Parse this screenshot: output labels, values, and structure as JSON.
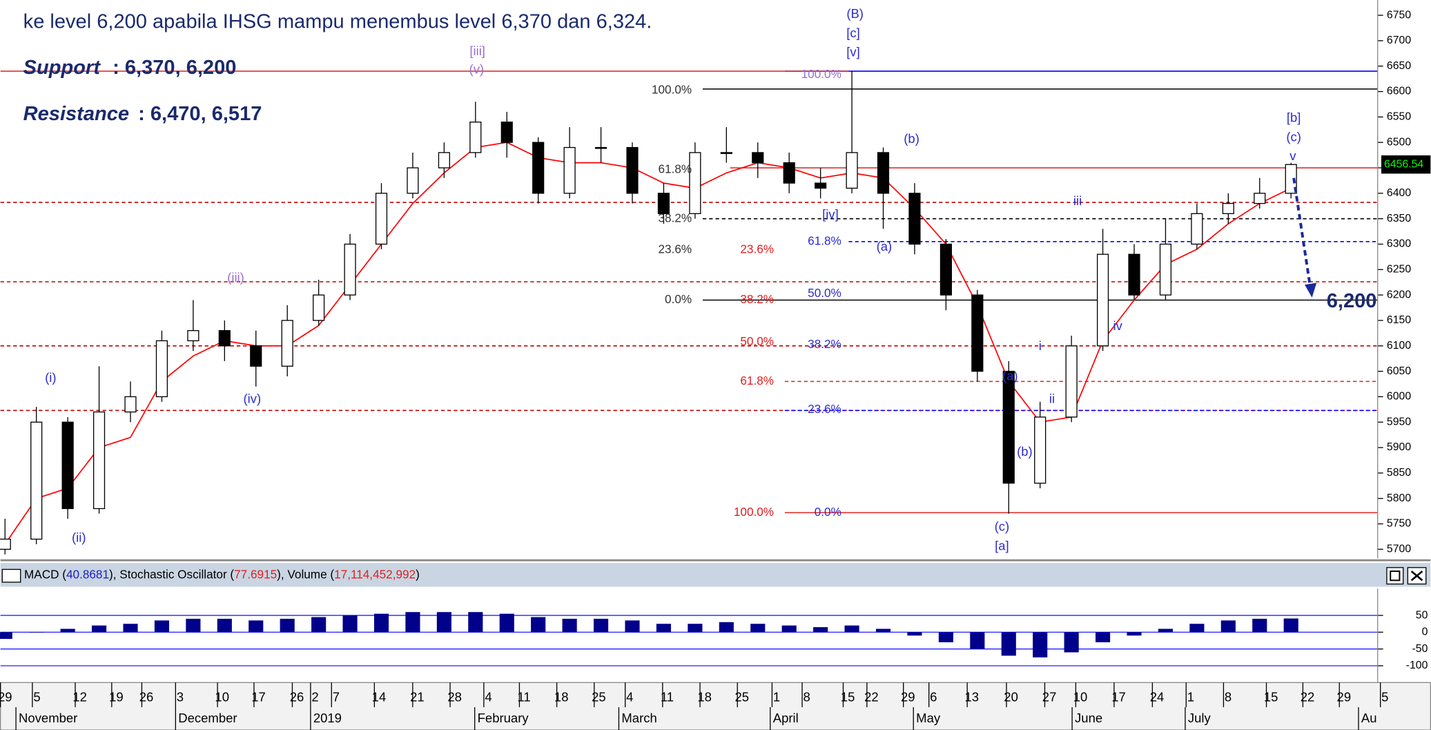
{
  "notes": {
    "text": "ke level 6,200 apabila IHSG mampu menembus level 6,370 dan 6,324.",
    "support_label": "Support",
    "support_text": ": 6,370, 6,200",
    "resistance_label": "Resistance",
    "resistance_text": ": 6,470, 6,517"
  },
  "chart_data": [
    {
      "type": "candlestick",
      "open": [
        5700,
        5720,
        5950,
        5780,
        5970,
        6000,
        6110,
        6130,
        6100,
        6060,
        6150,
        6200,
        6300,
        6400,
        6450,
        6480,
        6540,
        6500,
        6400,
        6490,
        6490,
        6400,
        6360,
        6480,
        6480,
        6460,
        6420,
        6410,
        6480,
        6400,
        6300,
        6200,
        6050,
        5830,
        5960,
        6100,
        6280,
        6200,
        6300,
        6360,
        6380,
        6400
      ],
      "high": [
        5760,
        5980,
        5960,
        6060,
        6030,
        6130,
        6190,
        6150,
        6130,
        6180,
        6230,
        6320,
        6420,
        6480,
        6500,
        6580,
        6560,
        6510,
        6530,
        6530,
        6500,
        6420,
        6500,
        6530,
        6500,
        6480,
        6450,
        6640,
        6490,
        6420,
        6310,
        6210,
        6070,
        5990,
        6120,
        6330,
        6300,
        6350,
        6380,
        6400,
        6430,
        6460
      ],
      "low": [
        5690,
        5710,
        5760,
        5770,
        5950,
        5990,
        6090,
        6070,
        6020,
        6040,
        6140,
        6190,
        6290,
        6390,
        6430,
        6470,
        6470,
        6380,
        6390,
        6460,
        6380,
        6340,
        6350,
        6460,
        6430,
        6400,
        6390,
        6400,
        6330,
        6280,
        6170,
        6030,
        5770,
        5820,
        5950,
        6090,
        6190,
        6190,
        6290,
        6340,
        6370,
        6390
      ],
      "close": [
        5720,
        5950,
        5780,
        5970,
        6000,
        6110,
        6130,
        6100,
        6060,
        6150,
        6200,
        6300,
        6400,
        6450,
        6480,
        6540,
        6500,
        6400,
        6490,
        6490,
        6400,
        6360,
        6480,
        6480,
        6460,
        6420,
        6410,
        6480,
        6400,
        6300,
        6200,
        6050,
        5830,
        5960,
        6100,
        6280,
        6200,
        6300,
        6360,
        6380,
        6400,
        6456.54
      ],
      "ma": {
        "color": "#ff0000",
        "values": [
          5710,
          5800,
          5820,
          5900,
          5920,
          6030,
          6080,
          6110,
          6100,
          6100,
          6140,
          6220,
          6300,
          6380,
          6440,
          6490,
          6500,
          6470,
          6460,
          6460,
          6450,
          6420,
          6410,
          6440,
          6460,
          6450,
          6430,
          6440,
          6430,
          6370,
          6300,
          6180,
          6030,
          5950,
          5960,
          6110,
          6190,
          6260,
          6290,
          6340,
          6380,
          6410
        ]
      },
      "up_color": "#ffffff",
      "down_color": "#000000",
      "ylim": [
        5682,
        6780
      ],
      "yticks": [
        5700,
        5750,
        5800,
        5850,
        5900,
        5950,
        6000,
        6050,
        6100,
        6150,
        6200,
        6250,
        6300,
        6350,
        6400,
        6450,
        6500,
        6550,
        6600,
        6650,
        6700,
        6750
      ],
      "reference_lines": [
        {
          "value": 6640,
          "color": "#0000ff",
          "dashed": false
        },
        {
          "value": 6640,
          "color": "#e03030",
          "dashed": false
        },
        {
          "value": 6605,
          "color": "#000000",
          "dashed": false
        },
        {
          "value": 6450,
          "color": "#e03030",
          "dashed": false
        },
        {
          "value": 6382,
          "color": "#c00000",
          "dashed": true
        },
        {
          "value": 6350,
          "color": "#000000",
          "dashed": true
        },
        {
          "value": 6305,
          "color": "#0000ff",
          "dashed": true
        },
        {
          "value": 6226,
          "color": "#c00000",
          "dashed": true
        },
        {
          "value": 6190,
          "color": "#000000",
          "dashed": false
        },
        {
          "value": 6100,
          "color": "#c00000",
          "dashed": true
        },
        {
          "value": 6030,
          "color": "#e03030",
          "dashed": true
        },
        {
          "value": 5973,
          "color": "#c00000",
          "dashed": true
        },
        {
          "value": 5973,
          "color": "#0000ff",
          "dashed": true
        },
        {
          "value": 5772,
          "color": "#e03030",
          "dashed": false
        }
      ],
      "wave_labels": [
        "(i)",
        "(ii)",
        "(iii)",
        "(iv)",
        "[iii]",
        "(v)",
        "(B)",
        "[c]",
        "[v]",
        "[iv]",
        "(b)",
        "(a)",
        "iii",
        "i",
        "(a)",
        "ii",
        "(b)",
        "(c)",
        "[a]",
        "iv",
        "[b]",
        "(c)",
        "v"
      ],
      "fib_labels": [
        "100.0%",
        "61.8%",
        "38.2%",
        "23.6%",
        "0.0%",
        "23.6%",
        "38.2%",
        "50.0%",
        "61.8%",
        "100.0%",
        "100.0%",
        "61.8%",
        "50.0%",
        "38.2%",
        "23.6%",
        "0.0%"
      ],
      "target_label": "6,200",
      "date_labels": [
        "29",
        "5",
        "12",
        "19",
        "26",
        "3",
        "10",
        "17",
        "26",
        "2",
        "7",
        "14",
        "21",
        "28",
        "4",
        "11",
        "18",
        "25",
        "4",
        "11",
        "18",
        "25",
        "1",
        "8",
        "15",
        "22",
        "29",
        "6",
        "13",
        "20",
        "27",
        "10",
        "17",
        "24",
        "1",
        "8",
        "15",
        "22",
        "29",
        "5"
      ],
      "month_labels": [
        "November",
        "December",
        "2019",
        "February",
        "March",
        "April",
        "May",
        "June",
        "July",
        "Au"
      ]
    },
    {
      "type": "bar",
      "legend": [
        "MACD (",
        "40.8681",
        "), Stochastic Oscillator (",
        "77.6915",
        "), Volume (",
        "17,114,452,992",
        ")"
      ],
      "color": "#00008b",
      "values": [
        -20,
        0,
        10,
        20,
        25,
        35,
        40,
        40,
        35,
        40,
        45,
        50,
        55,
        60,
        60,
        60,
        55,
        45,
        40,
        40,
        35,
        25,
        25,
        30,
        25,
        20,
        15,
        20,
        10,
        -10,
        -30,
        -50,
        -70,
        -75,
        -60,
        -30,
        -10,
        10,
        25,
        35,
        40,
        40.87
      ],
      "ylim": [
        -150,
        130
      ],
      "yticks": [
        50,
        0,
        -50,
        -100
      ]
    }
  ]
}
